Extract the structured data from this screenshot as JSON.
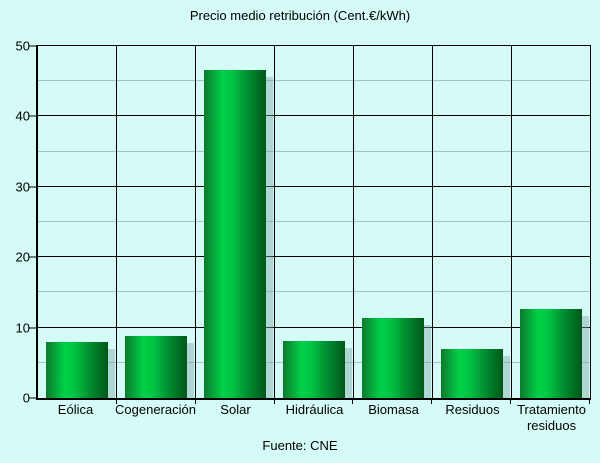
{
  "title": "Precio medio retribución (Cent.€/kWh)",
  "source": "Fuente: CNE",
  "chart_data": {
    "type": "bar",
    "title": "Precio medio retribución (Cent.€/kWh)",
    "source": "Fuente: CNE",
    "categories": [
      "Eólica",
      "Cogeneración",
      "Solar",
      "Hidráulica",
      "Biomasa",
      "Residuos",
      "Tratamiento residuos"
    ],
    "values": [
      8.0,
      8.8,
      46.6,
      8.1,
      11.3,
      6.9,
      12.7
    ],
    "xlabel": "",
    "ylabel": "",
    "ylim": [
      0,
      50
    ],
    "y_major_ticks": [
      0,
      10,
      20,
      30,
      40,
      50
    ],
    "y_minor_step": 5,
    "grid": "major and minor horizontal lines, vertical category separators",
    "legend": "none",
    "colors": {
      "background": "#d5fbf7",
      "bar_gradient": [
        "#0c7a2c",
        "#00d148",
        "#005719"
      ],
      "major_grid": "#000000",
      "minor_grid": "#a8c2c2",
      "bar_shadow": "#7aa3a3",
      "text": "#000000"
    }
  }
}
